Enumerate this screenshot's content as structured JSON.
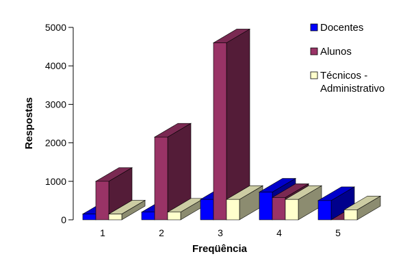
{
  "chart_data": {
    "type": "bar",
    "title": "",
    "xlabel": "Freqüência",
    "ylabel": "Respostas",
    "categories": [
      "1",
      "2",
      "3",
      "4",
      "5"
    ],
    "ylim": [
      0,
      5000
    ],
    "yticks": [
      "0",
      "1000",
      "2000",
      "3000",
      "4000",
      "5000"
    ],
    "grid": false,
    "legend_position": "right",
    "series": [
      {
        "name": "Docentes",
        "color": "#0000ff",
        "values": [
          150,
          200,
          530,
          720,
          500
        ]
      },
      {
        "name": "Alunos",
        "color": "#993366",
        "values": [
          1000,
          2150,
          4600,
          580,
          0
        ]
      },
      {
        "name": "Técnicos - Administrativo",
        "legend_lines": [
          "Técnicos -",
          "Administrativo"
        ],
        "color": "#ffffcc",
        "values": [
          150,
          200,
          530,
          530,
          260
        ]
      }
    ]
  }
}
